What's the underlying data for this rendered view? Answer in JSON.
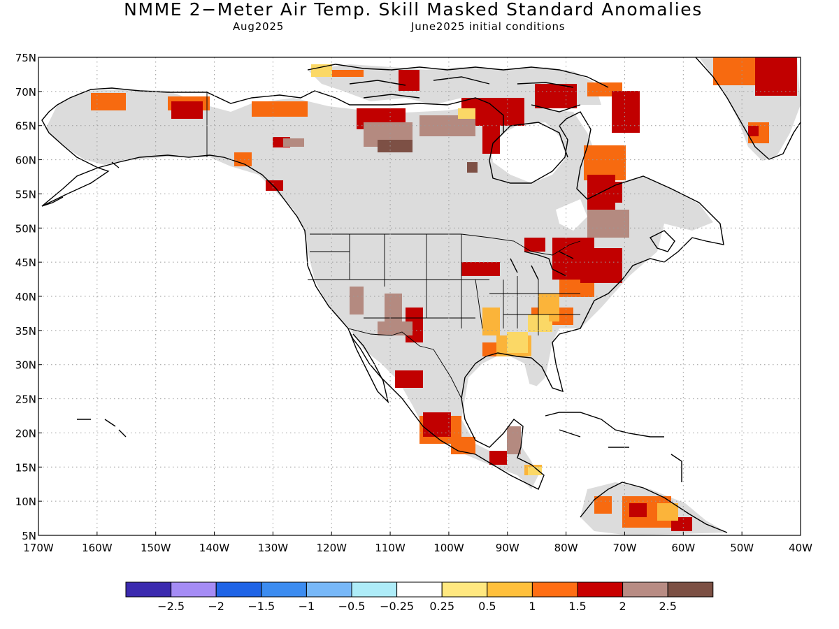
{
  "title": "NMME 2−Meter Air Temp. Skill Masked Standard Anomalies",
  "subtitle_left": "Aug2025",
  "subtitle_right": "June2025 initial conditions",
  "map": {
    "lon_range": [
      -170,
      -40
    ],
    "lat_range": [
      5,
      75
    ],
    "lat_labels": [
      "75N",
      "70N",
      "65N",
      "60N",
      "55N",
      "50N",
      "45N",
      "40N",
      "35N",
      "30N",
      "25N",
      "20N",
      "15N",
      "10N",
      "5N"
    ],
    "lon_labels": [
      "170W",
      "160W",
      "150W",
      "140W",
      "130W",
      "120W",
      "110W",
      "100W",
      "90W",
      "80W",
      "70W",
      "60W",
      "50W",
      "40W"
    ],
    "colors": {
      "masked": "#dcdcdc",
      "coast": "#000000",
      "c0_5": "#fbd866",
      "c1": "#fbb43a",
      "c1_5": "#f76a10",
      "c2": "#c10000",
      "c2_5": "#b48a80",
      "c3": "#7d5045"
    }
  },
  "legend": {
    "colors": [
      "#3b2aaf",
      "#a58cf5",
      "#1f64e6",
      "#3c8cf0",
      "#78b8f8",
      "#aeecf8",
      "#ffffff",
      "#ffe880",
      "#ffc03c",
      "#ff6e14",
      "#c80000",
      "#b88c84",
      "#7c5044"
    ],
    "labels": [
      "−2.5",
      "−2",
      "−1.5",
      "−1",
      "−0.5",
      "−0.25",
      "0.25",
      "0.5",
      "1",
      "1.5",
      "2",
      "2.5"
    ]
  }
}
